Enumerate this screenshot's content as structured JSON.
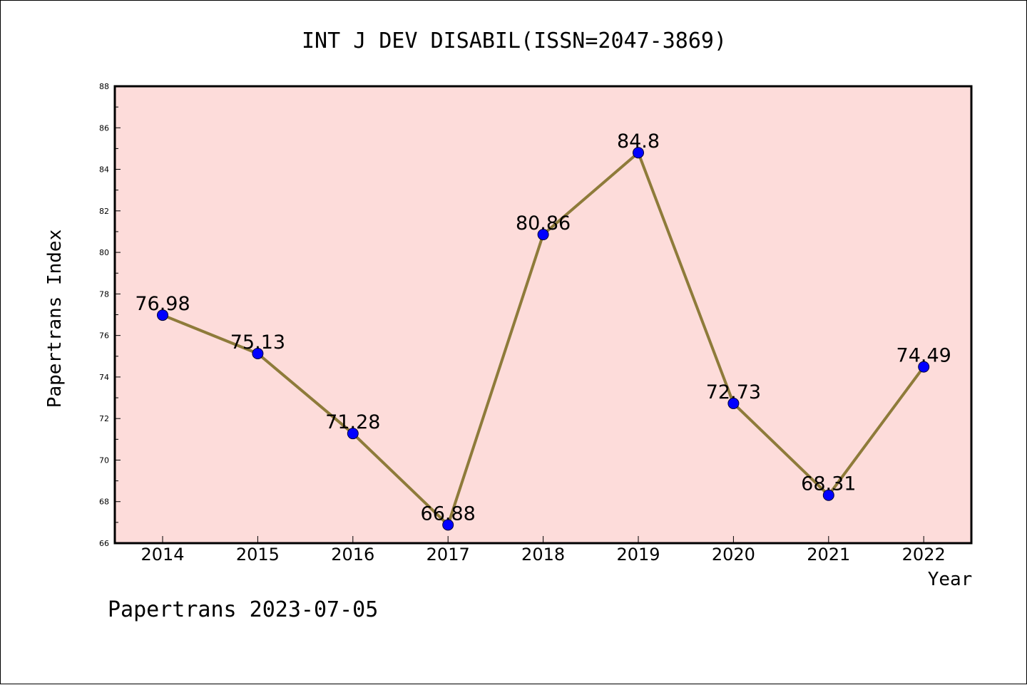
{
  "chart_data": {
    "type": "line",
    "title": "INT J DEV DISABIL(ISSN=2047-3869)",
    "xlabel": "Year",
    "ylabel": "Papertrans Index",
    "x": [
      "2014",
      "2015",
      "2016",
      "2017",
      "2018",
      "2019",
      "2020",
      "2021",
      "2022"
    ],
    "series": [
      {
        "values": [
          76.98,
          75.13,
          71.28,
          66.88,
          80.86,
          84.8,
          72.73,
          68.31,
          74.49
        ]
      }
    ],
    "data_labels": [
      "76.98",
      "75.13",
      "71.28",
      "66.88",
      "80.86",
      "84.8",
      "72.73",
      "68.31",
      "74.49"
    ],
    "ylim": [
      66,
      88
    ],
    "yticks": [
      "66",
      "68",
      "70",
      "72",
      "74",
      "76",
      "78",
      "80",
      "82",
      "84",
      "86",
      "88"
    ],
    "grid": false,
    "colors": {
      "plot_background": "#fddcda",
      "line": "#8e7b3a",
      "marker": "#0000ff"
    }
  },
  "footer": "Papertrans 2023-07-05"
}
